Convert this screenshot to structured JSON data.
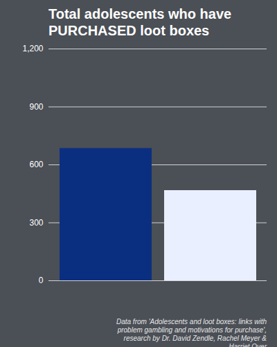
{
  "chart_data": {
    "type": "bar",
    "title": "Total adolescents who have PURCHASED loot boxes",
    "caption": "Data from 'Adolescents and loot boxes: links with problem gambling and motivations for purchase', research by Dr. David Zendle, Rachel Meyer & Harriet Over",
    "categories": [
      null,
      null
    ],
    "values": [
      685,
      467
    ],
    "colors": [
      "#0b2f80",
      "#eaefff"
    ],
    "ylim": [
      0,
      1200
    ],
    "yticks": [
      0,
      300,
      600,
      900,
      1200
    ],
    "grid": true
  }
}
